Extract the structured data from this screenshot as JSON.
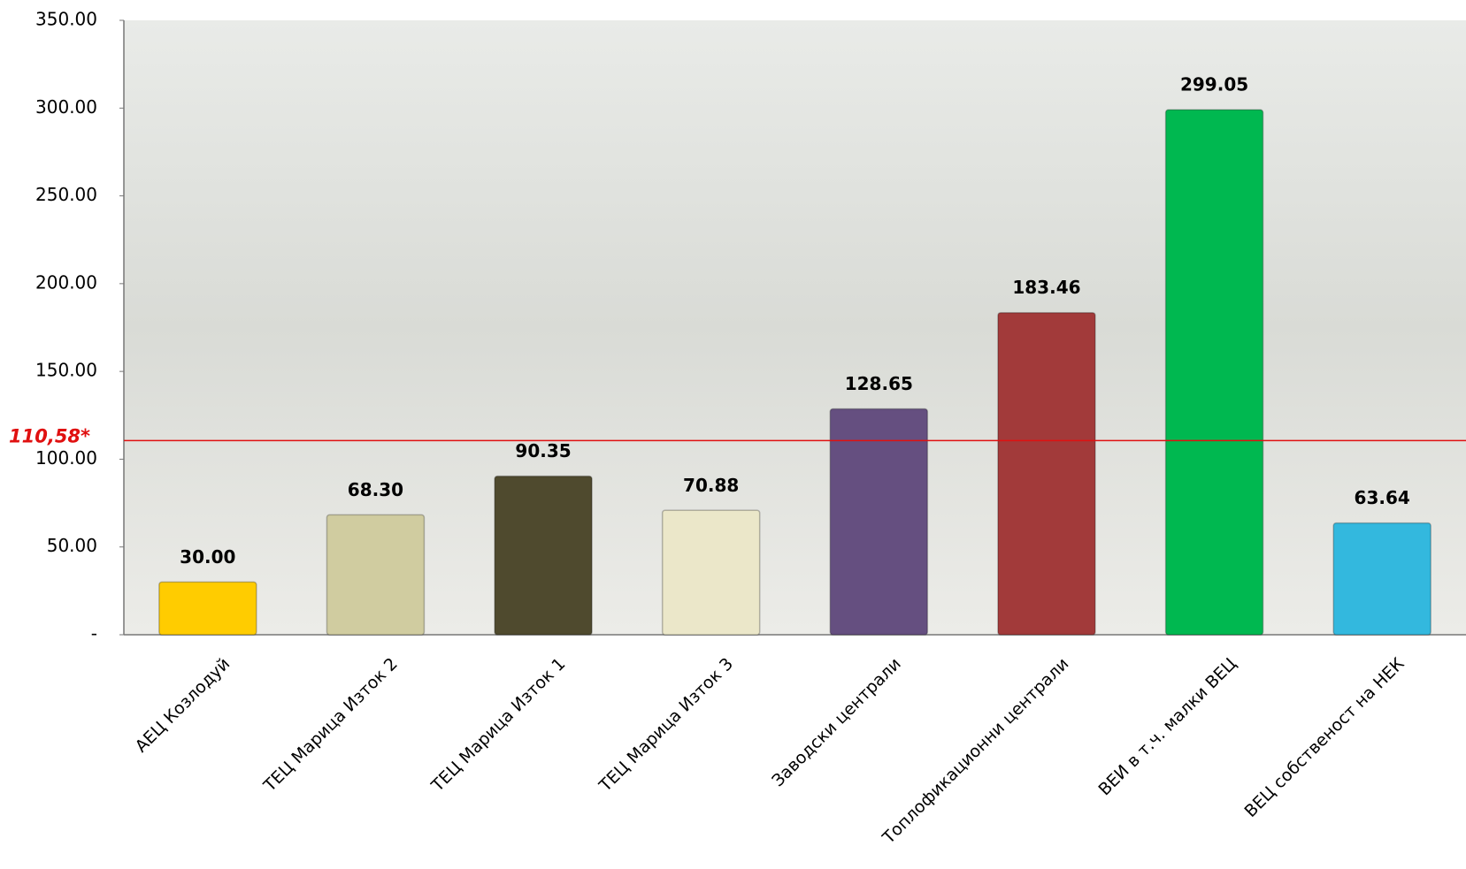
{
  "chart_data": {
    "type": "bar",
    "categories": [
      "АЕЦ Козлодуй",
      "ТЕЦ Марица Изток 2",
      "ТЕЦ Марица Изток 1",
      "ТЕЦ Марица Изток 3",
      "Заводски централи",
      "Топлофикационни централи",
      "ВЕИ в т.ч. малки  ВЕЦ",
      "ВЕЦ собственост на НЕК"
    ],
    "values": [
      30,
      68.3,
      90.35,
      70.88,
      128.65,
      183.46,
      299.05,
      63.64
    ],
    "value_labels": [
      "30.00",
      "68.30",
      "90.35",
      "70.88",
      "128.65",
      "183.46",
      "299.05",
      "63.64"
    ],
    "colors": [
      "#ffcc00",
      "#d0cca0",
      "#4f4a2e",
      "#ebe7c9",
      "#654f80",
      "#a23a3a",
      "#00b850",
      "#33b8de"
    ],
    "ylim": [
      0,
      350
    ],
    "yticks": [
      {
        "value": 0,
        "label": "-"
      },
      {
        "value": 50,
        "label": "50.00"
      },
      {
        "value": 100,
        "label": "100.00"
      },
      {
        "value": 150,
        "label": "150.00"
      },
      {
        "value": 200,
        "label": "200.00"
      },
      {
        "value": 250,
        "label": "250.00"
      },
      {
        "value": 300,
        "label": "300.00"
      },
      {
        "value": 350,
        "label": "350.00"
      }
    ],
    "reference_line": {
      "value": 110.58,
      "label": "110,58*",
      "color": "#e01010"
    }
  }
}
